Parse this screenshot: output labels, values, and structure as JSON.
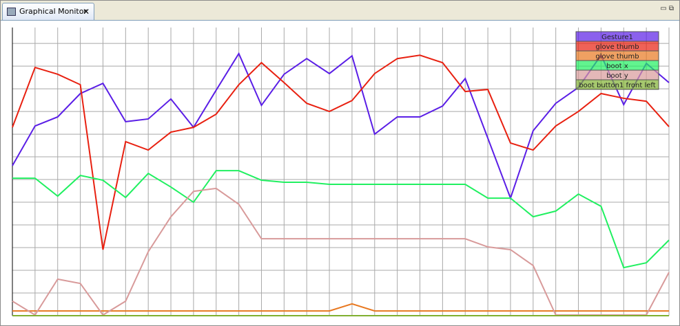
{
  "tab": {
    "title": "Graphical Monitor"
  },
  "chart_data": {
    "type": "line",
    "x": [
      0,
      1,
      2,
      3,
      4,
      5,
      6,
      7,
      8,
      9,
      10,
      11,
      12,
      13,
      14,
      15,
      16,
      17,
      18,
      19,
      20,
      21,
      22,
      23,
      24,
      25,
      26,
      27,
      28,
      29
    ],
    "xlim": [
      0,
      29
    ],
    "xticks": [
      0,
      1,
      2,
      3,
      4,
      5,
      6,
      7,
      8,
      9,
      10,
      11,
      12,
      13,
      14,
      15,
      16,
      17,
      18,
      19,
      20,
      21,
      22,
      23,
      24,
      25,
      26,
      27,
      28,
      29
    ],
    "ylim": [
      0,
      127
    ],
    "yticks": [
      0,
      10,
      20,
      30,
      40,
      50,
      60,
      70,
      80,
      90,
      100,
      110,
      120
    ],
    "grid": true,
    "legend": "upper right",
    "series": [
      {
        "name": "Gesture1",
        "color": "#5a1ee6",
        "values": [
          66.1,
          83.6,
          87.6,
          97.9,
          102.4,
          85.5,
          86.7,
          95.5,
          83.0,
          99.4,
          115.5,
          92.7,
          106.4,
          113.3,
          106.7,
          114.5,
          80.0,
          87.6,
          87.6,
          92.4,
          104.5,
          78.2,
          51.8,
          81.5,
          93.6,
          100.6,
          114.8,
          93.0,
          111.2,
          102.7
        ]
      },
      {
        "name": "glove thumb",
        "color": "#e82010",
        "values": [
          83.0,
          109.4,
          106.4,
          101.8,
          29.1,
          76.7,
          73.0,
          80.9,
          83.0,
          88.8,
          101.8,
          111.5,
          102.7,
          93.6,
          90.0,
          94.8,
          106.7,
          113.3,
          114.8,
          111.5,
          98.8,
          99.7,
          76.1,
          73.0,
          83.6,
          90.0,
          97.9,
          95.8,
          94.5,
          83.3
        ]
      },
      {
        "name": "glove thumb",
        "color": "#e87820",
        "values": [
          2.1,
          2.1,
          2.1,
          2.1,
          2.1,
          2.1,
          2.1,
          2.1,
          2.1,
          2.1,
          2.1,
          2.1,
          2.1,
          2.1,
          2.1,
          5.2,
          2.1,
          2.1,
          2.1,
          2.1,
          2.1,
          2.1,
          2.1,
          2.1,
          2.1,
          2.1,
          2.1,
          2.1,
          2.1,
          2.1
        ]
      },
      {
        "name": "boot x",
        "color": "#20f060",
        "values": [
          60.6,
          60.6,
          52.7,
          61.8,
          59.7,
          52.1,
          62.7,
          56.7,
          50.0,
          63.9,
          63.9,
          59.7,
          58.8,
          58.8,
          57.9,
          57.9,
          57.9,
          57.9,
          57.9,
          57.9,
          57.9,
          51.8,
          51.8,
          43.6,
          46.1,
          53.6,
          48.2,
          21.2,
          23.3,
          33.3
        ]
      },
      {
        "name": "boot y",
        "color": "#d89a9a",
        "values": [
          6.4,
          0.3,
          16.1,
          14.2,
          0.3,
          6.4,
          28.2,
          43.6,
          54.8,
          56.1,
          49.1,
          33.9,
          33.9,
          33.9,
          33.9,
          33.9,
          33.9,
          33.9,
          33.9,
          33.9,
          33.9,
          30.3,
          29.1,
          22.1,
          0.3,
          0.3,
          0.3,
          0.3,
          0.3,
          19.1
        ]
      },
      {
        "name": "boot button1 front left",
        "color": "#80b030",
        "values": [
          0,
          0,
          0,
          0,
          0,
          0,
          0,
          0,
          0,
          0,
          0,
          0,
          0,
          0,
          0,
          0,
          0,
          0,
          0,
          0,
          0,
          0,
          0,
          0,
          0,
          0,
          0,
          0,
          0,
          0
        ]
      }
    ]
  }
}
